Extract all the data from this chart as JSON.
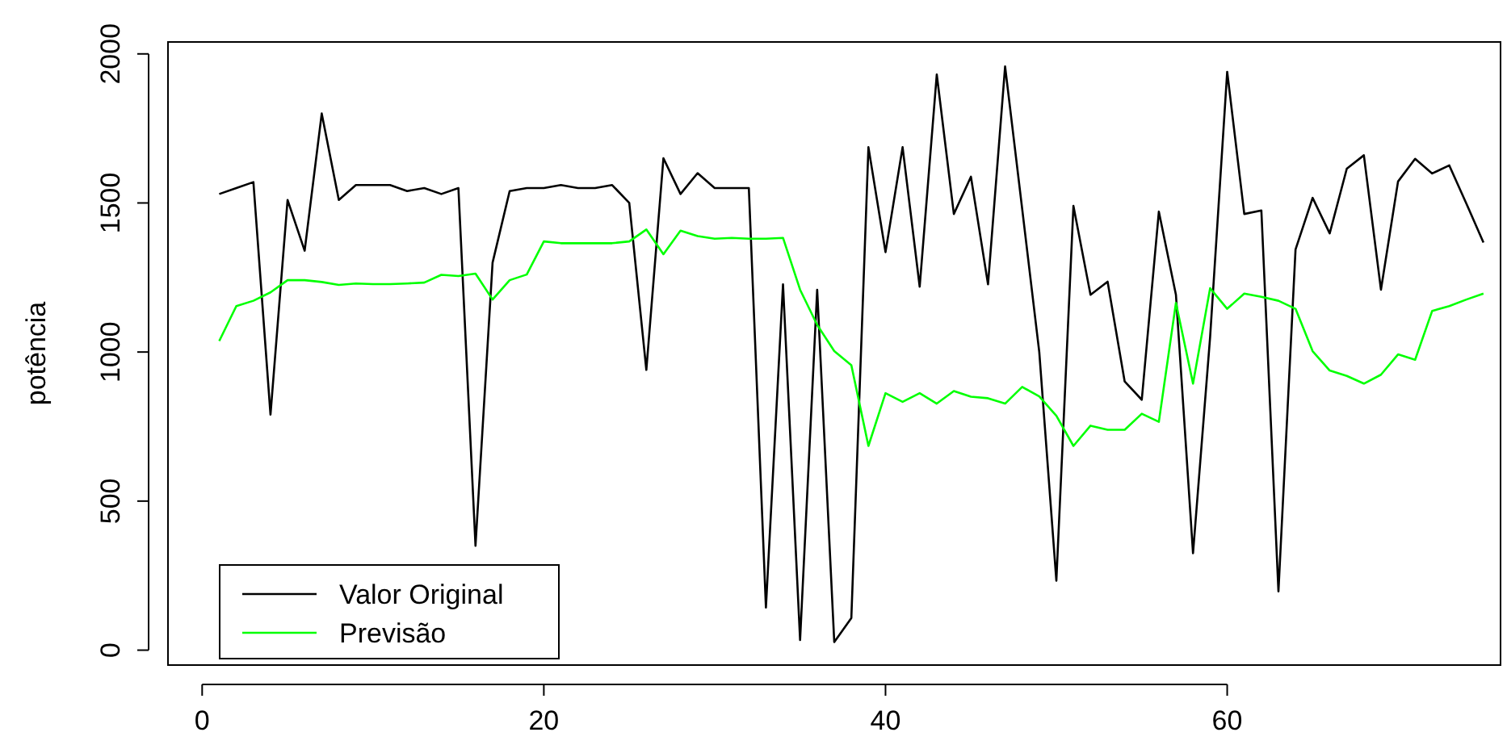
{
  "chart_data": {
    "type": "line",
    "ylabel": "potência",
    "x": [
      1,
      2,
      3,
      4,
      5,
      6,
      7,
      8,
      9,
      10,
      11,
      12,
      13,
      14,
      15,
      16,
      17,
      18,
      19,
      20,
      21,
      22,
      23,
      24,
      25,
      26,
      27,
      28,
      29,
      30,
      31,
      32,
      33,
      34,
      35,
      36,
      37,
      38,
      39,
      40,
      41,
      42,
      43,
      44,
      45,
      46,
      47,
      48,
      49,
      50,
      51,
      52,
      53,
      54,
      55,
      56,
      57,
      58,
      59,
      60,
      61,
      62,
      63,
      64,
      65,
      66,
      67,
      68,
      69,
      70,
      71,
      72,
      73,
      74,
      75
    ],
    "series": [
      {
        "name": "Valor Original",
        "color": "#000000",
        "values": [
          1530,
          1550,
          1570,
          790,
          1510,
          1340,
          1800,
          1510,
          1560,
          1560,
          1560,
          1540,
          1550,
          1530,
          1550,
          350,
          1300,
          1540,
          1550,
          1550,
          1560,
          1550,
          1550,
          1560,
          1500,
          940,
          1650,
          1530,
          1600,
          1550,
          1550,
          1550,
          143,
          1227,
          34,
          1209,
          27,
          108,
          1687,
          1335,
          1687,
          1219,
          1931,
          1463,
          1588,
          1227,
          1958,
          1480,
          1000,
          233,
          1490,
          1192,
          1236,
          901,
          840,
          1471,
          1192,
          325,
          1050,
          1940,
          1463,
          1475,
          197,
          1344,
          1517,
          1398,
          1615,
          1660,
          1209,
          1572,
          1648,
          1599,
          1626,
          1498,
          1367
        ]
      },
      {
        "name": "Previsão",
        "color": "#00ff00",
        "values": [
          1037,
          1154,
          1172,
          1200,
          1241,
          1241,
          1235,
          1225,
          1230,
          1228,
          1228,
          1230,
          1233,
          1259,
          1255,
          1263,
          1176,
          1241,
          1260,
          1371,
          1365,
          1365,
          1365,
          1365,
          1371,
          1411,
          1328,
          1407,
          1389,
          1380,
          1383,
          1380,
          1380,
          1383,
          1209,
          1091,
          1003,
          956,
          685,
          862,
          833,
          862,
          827,
          869,
          850,
          845,
          827,
          883,
          851,
          786,
          685,
          753,
          739,
          739,
          793,
          766,
          1165,
          894,
          1214,
          1145,
          1196,
          1185,
          1172,
          1145,
          1003,
          938,
          920,
          894,
          924,
          992,
          974,
          1138,
          1154,
          1176,
          1196
        ]
      }
    ],
    "xlim": [
      -2,
      76
    ],
    "ylim": [
      -50,
      2040
    ],
    "xticks": [
      0,
      20,
      40,
      60
    ],
    "yticks": [
      0,
      500,
      1000,
      1500,
      2000
    ],
    "legend": "bottom left",
    "line_style": "solid",
    "marker": "none",
    "grid": false
  }
}
